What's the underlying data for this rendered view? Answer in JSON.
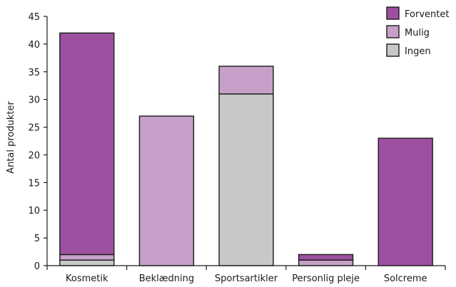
{
  "chart_data": {
    "type": "bar",
    "stacked": true,
    "categories": [
      "Kosmetik",
      "Beklædning",
      "Sportsartikler",
      "Personlig pleje",
      "Solcreme"
    ],
    "series": [
      {
        "name": "Ingen",
        "color": "#c8c8c8",
        "values": [
          1,
          0,
          31,
          0,
          0
        ]
      },
      {
        "name": "Mulig",
        "color": "#c7a0c9",
        "values": [
          1,
          27,
          5,
          1,
          0
        ]
      },
      {
        "name": "Forventet",
        "color": "#9e50a0",
        "values": [
          40,
          0,
          0,
          1,
          23
        ]
      }
    ],
    "legend_order": [
      "Forventet",
      "Mulig",
      "Ingen"
    ],
    "legend_position": "top-right",
    "xlabel": "",
    "ylabel": "Antal produkter",
    "ylim": [
      0,
      45
    ],
    "yticks": [
      0,
      5,
      10,
      15,
      20,
      25,
      30,
      35,
      40,
      45
    ],
    "grid": false
  }
}
